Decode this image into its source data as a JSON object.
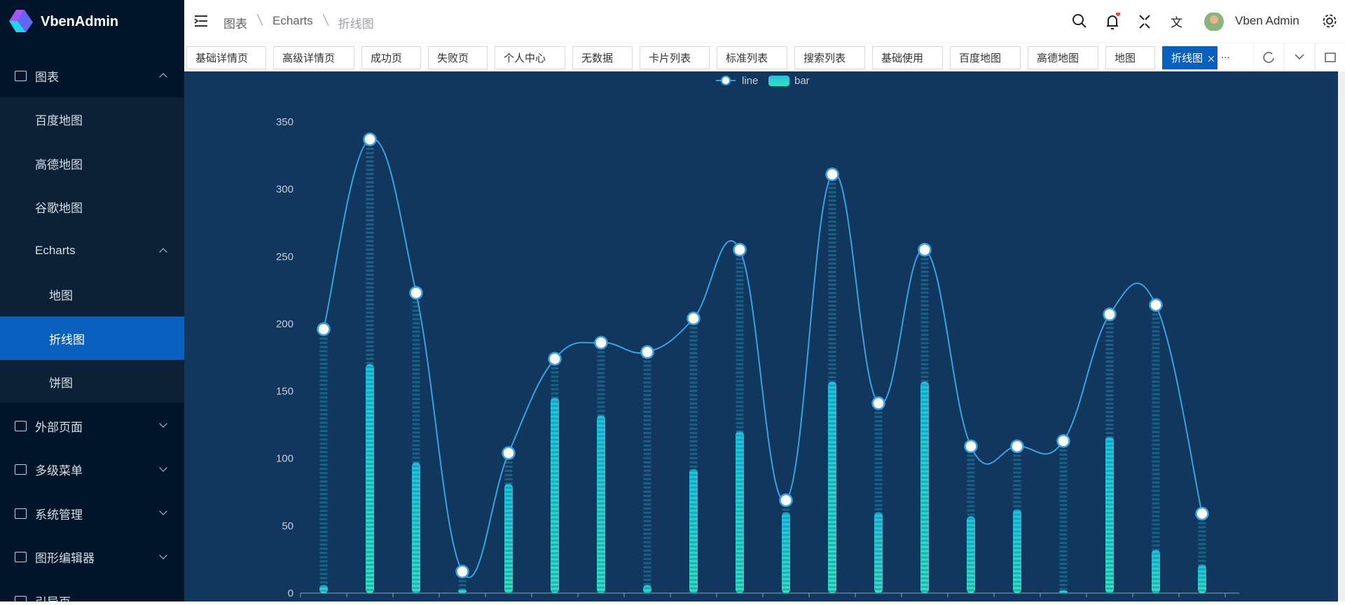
{
  "sidebar": {
    "logo": "VbenAdmin",
    "items": [
      {
        "label": "图表",
        "children": [
          {
            "label": "百度地图"
          },
          {
            "label": "高德地图"
          },
          {
            "label": "谷歌地图"
          },
          {
            "label": "Echarts",
            "children": [
              {
                "label": "地图"
              },
              {
                "label": "折线图"
              },
              {
                "label": "饼图"
              }
            ]
          }
        ]
      },
      {
        "label": "外部页面"
      },
      {
        "label": "多级菜单"
      },
      {
        "label": "系统管理"
      },
      {
        "label": "图形编辑器"
      },
      {
        "label": "引导页"
      }
    ]
  },
  "header": {
    "breadcrumb": [
      "图表",
      "Echarts",
      "折线图"
    ],
    "user": "Vben Admin"
  },
  "tabs": [
    "基础详情页",
    "高级详情页",
    "成功页",
    "失败页",
    "个人中心",
    "无数据",
    "卡片列表",
    "标准列表",
    "搜索列表",
    "基础使用",
    "百度地图",
    "高德地图",
    "地图",
    "折线图"
  ],
  "chart_data": {
    "type": "bar",
    "series": [
      {
        "name": "line",
        "type": "line",
        "color": "#3ba1e0",
        "values": [
          196,
          337,
          223,
          16,
          104,
          174,
          186,
          179,
          204,
          255,
          69,
          311,
          141,
          255,
          109,
          109,
          113,
          207,
          214,
          59
        ]
      },
      {
        "name": "bar",
        "type": "bar",
        "color": "#2bd6c8",
        "values": [
          6,
          170,
          97,
          3,
          81,
          145,
          132,
          6,
          92,
          120,
          60,
          157,
          60,
          157,
          57,
          62,
          2,
          116,
          32,
          21
        ]
      }
    ],
    "ylim": [
      0,
      350
    ],
    "yticks": [
      0,
      50,
      100,
      150,
      200,
      250,
      300,
      350
    ]
  }
}
